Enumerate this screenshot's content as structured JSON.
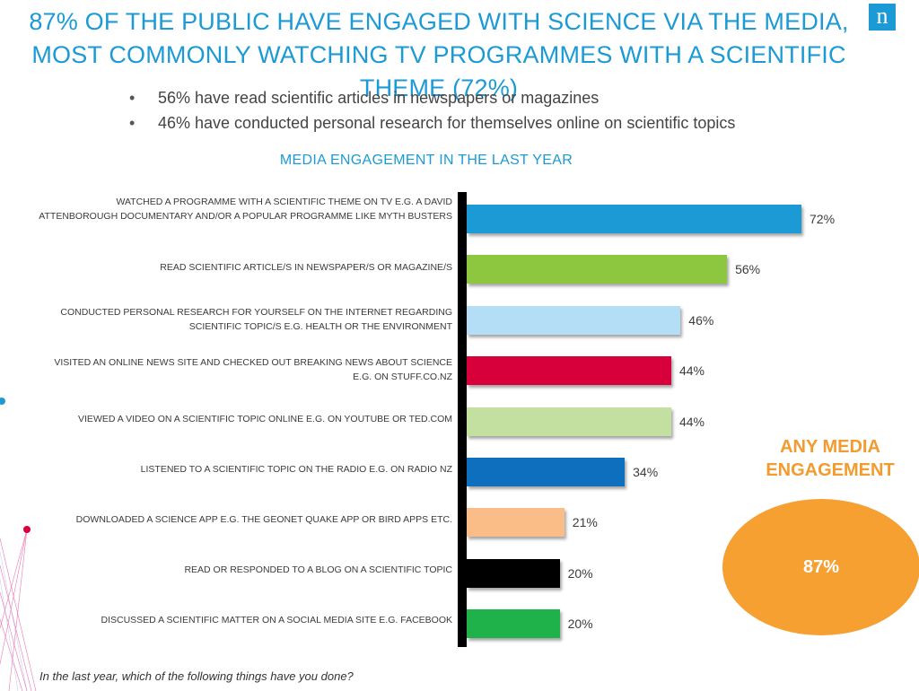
{
  "header": {
    "title": "87% OF THE PUBLIC HAVE ENGAGED WITH SCIENCE VIA THE MEDIA, MOST COMMONLY WATCHING TV PROGRAMMES WITH A SCIENTIFIC THEME (72%)",
    "logo_text": "n"
  },
  "bullets": [
    "56% have read scientific articles in newspapers or magazines",
    "46% have conducted personal research for themselves online on scientific topics"
  ],
  "highlight": {
    "label": "ANY MEDIA ENGAGEMENT",
    "value": "87%",
    "color": "#f7a032"
  },
  "footer": {
    "question": "In the last year, which of the following things have you done?"
  },
  "chart_data": {
    "type": "bar",
    "orientation": "horizontal",
    "title": "MEDIA ENGAGEMENT IN THE LAST YEAR",
    "categories": [
      "WATCHED A PROGRAMME WITH A SCIENTIFIC THEME ON TV E.G. A DAVID ATTENBOROUGH DOCUMENTARY AND/OR A POPULAR PROGRAMME LIKE MYTH BUSTERS",
      "READ SCIENTIFIC ARTICLE/S IN NEWSPAPER/S OR MAGAZINE/S",
      "CONDUCTED PERSONAL RESEARCH FOR YOURSELF ON THE INTERNET REGARDING SCIENTIFIC TOPIC/S E.G. HEALTH OR THE ENVIRONMENT",
      "VISITED AN ONLINE NEWS SITE AND CHECKED OUT BREAKING NEWS ABOUT SCIENCE E.G. ON STUFF.CO.NZ",
      "VIEWED A VIDEO ON A SCIENTIFIC TOPIC ONLINE E.G. ON YOUTUBE OR TED.COM",
      "LISTENED TO A SCIENTIFIC TOPIC ON THE RADIO E.G. ON RADIO NZ",
      "DOWNLOADED A SCIENCE APP E.G. THE GEONET QUAKE APP OR BIRD APPS ETC.",
      "READ OR RESPONDED TO A BLOG ON A SCIENTIFIC TOPIC",
      "DISCUSSED A SCIENTIFIC MATTER ON A SOCIAL MEDIA SITE E.G. FACEBOOK"
    ],
    "values": [
      72,
      56,
      46,
      44,
      44,
      34,
      21,
      20,
      20
    ],
    "value_labels": [
      "72%",
      "56%",
      "46%",
      "44%",
      "44%",
      "34%",
      "21%",
      "20%",
      "20%"
    ],
    "colors": [
      "#1b9ad6",
      "#8dc63f",
      "#b3def5",
      "#d7003a",
      "#c4e0a0",
      "#0f6fbf",
      "#fbbd88",
      "#000000",
      "#1fb24a"
    ],
    "unit": "%",
    "xlim": [
      0,
      100
    ],
    "grid": false,
    "legend": "none"
  }
}
